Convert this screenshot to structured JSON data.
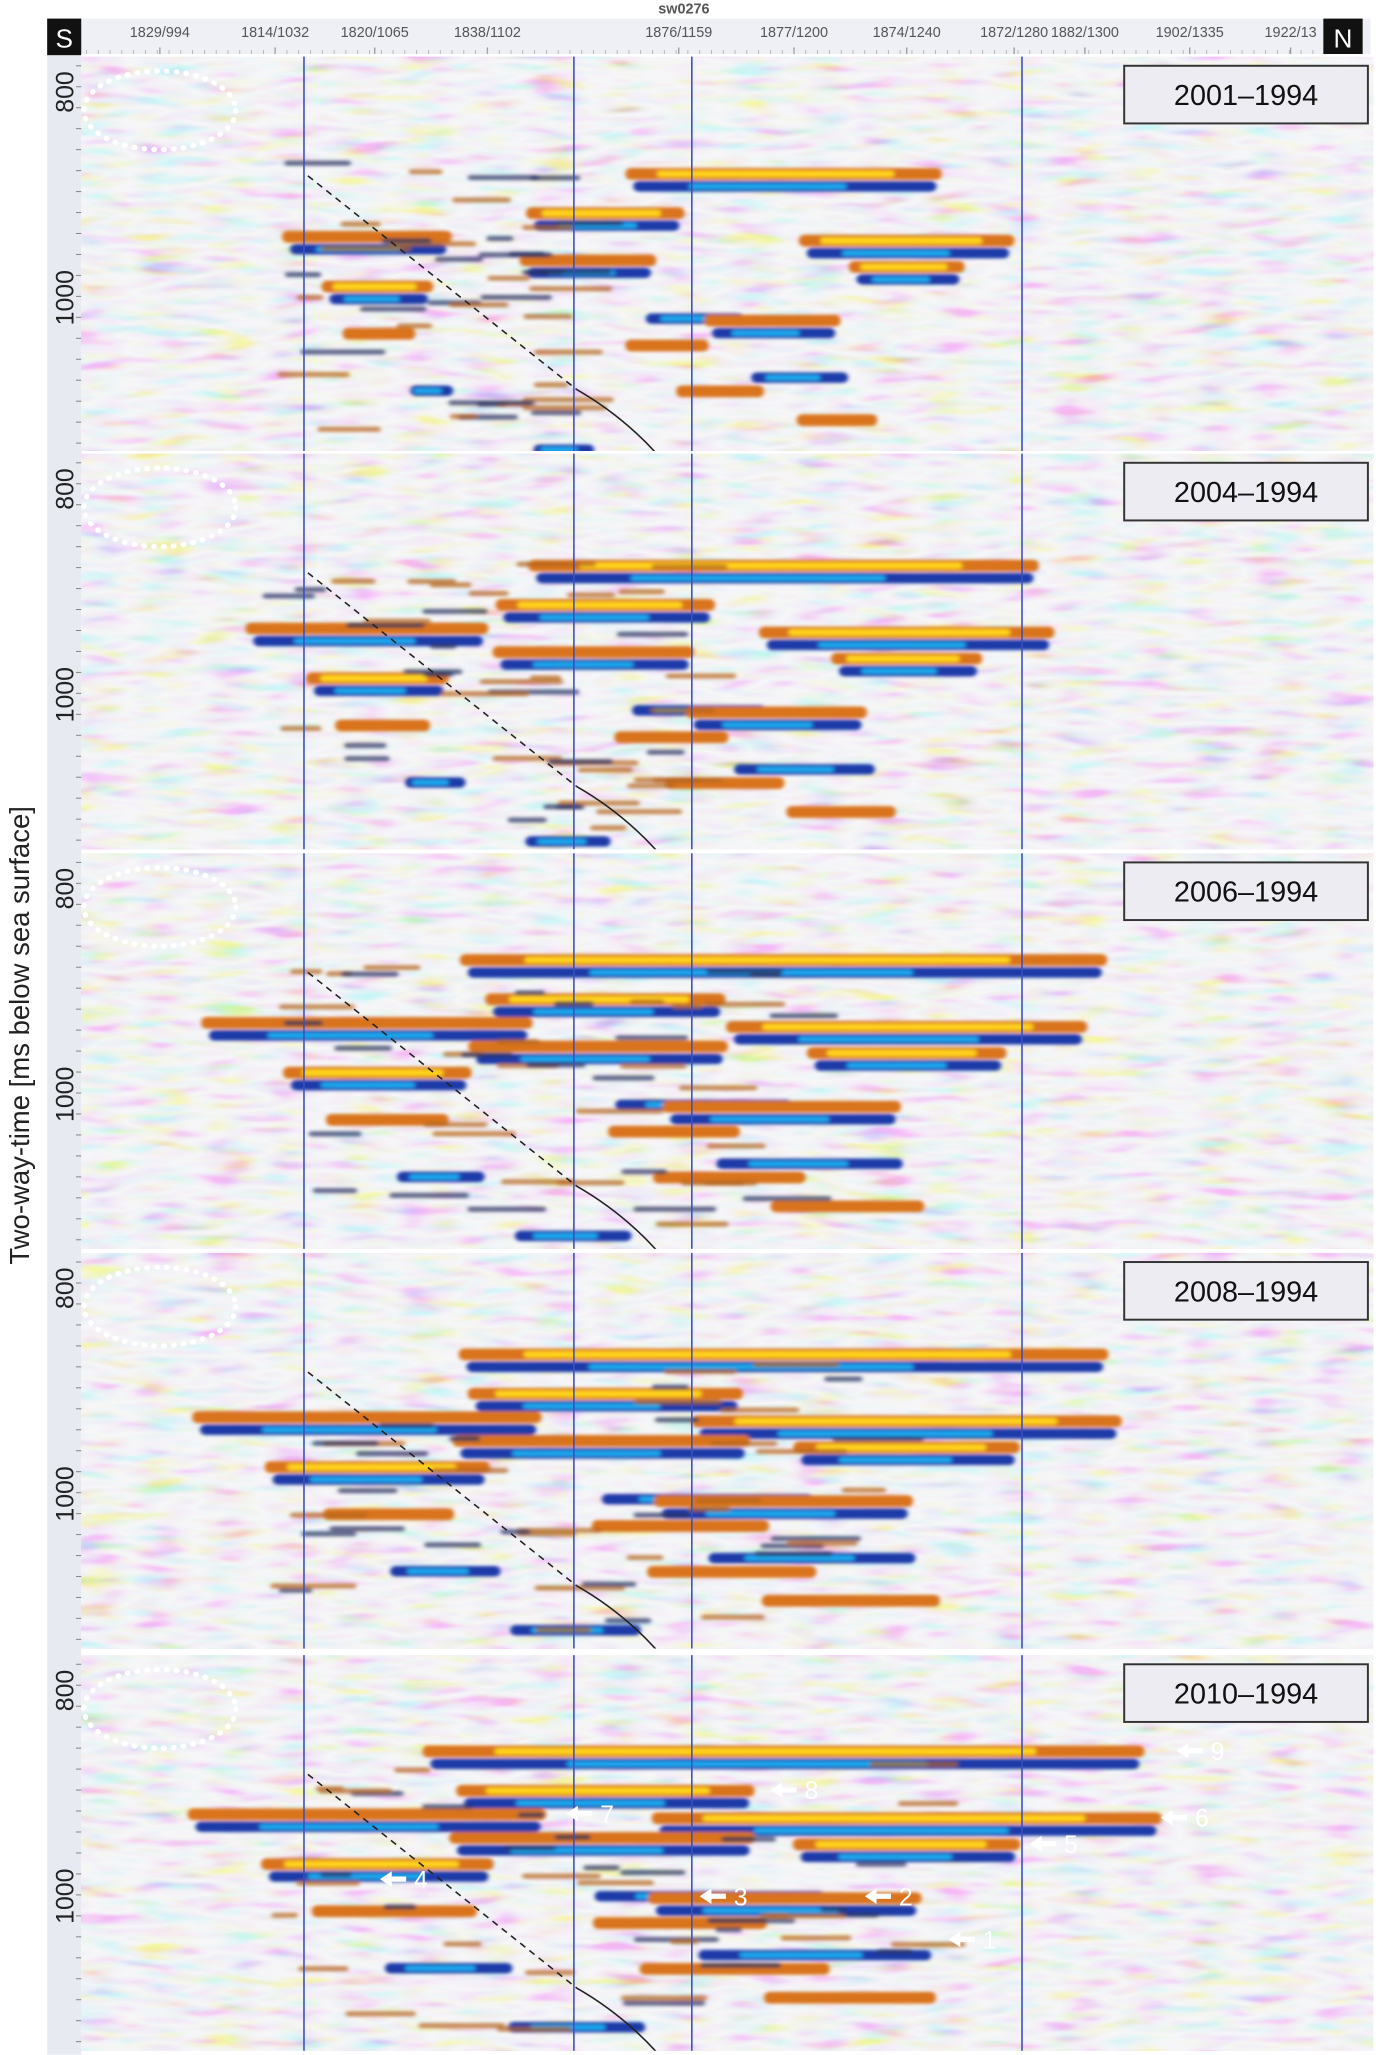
{
  "header": {
    "south": "S",
    "north": "N",
    "line": "sw0276",
    "traces": [
      "1829/994",
      "1814/1032",
      "1820/1065",
      "1838/1102",
      "1876/1159",
      "1877/1200",
      "1874/1240",
      "1872/1280",
      "1882/1300",
      "1902/1335",
      "1922/13"
    ]
  },
  "y_axis": {
    "label": "Two-way-time [ms below sea surface]",
    "ticks": [
      "800",
      "1000"
    ]
  },
  "panels": [
    {
      "title": "2001–1994"
    },
    {
      "title": "2004–1994"
    },
    {
      "title": "2006–1994"
    },
    {
      "title": "2008–1994"
    },
    {
      "title": "2010–1994"
    }
  ],
  "markers": [
    "1",
    "2",
    "3",
    "4",
    "5",
    "6",
    "7",
    "8",
    "9"
  ]
}
